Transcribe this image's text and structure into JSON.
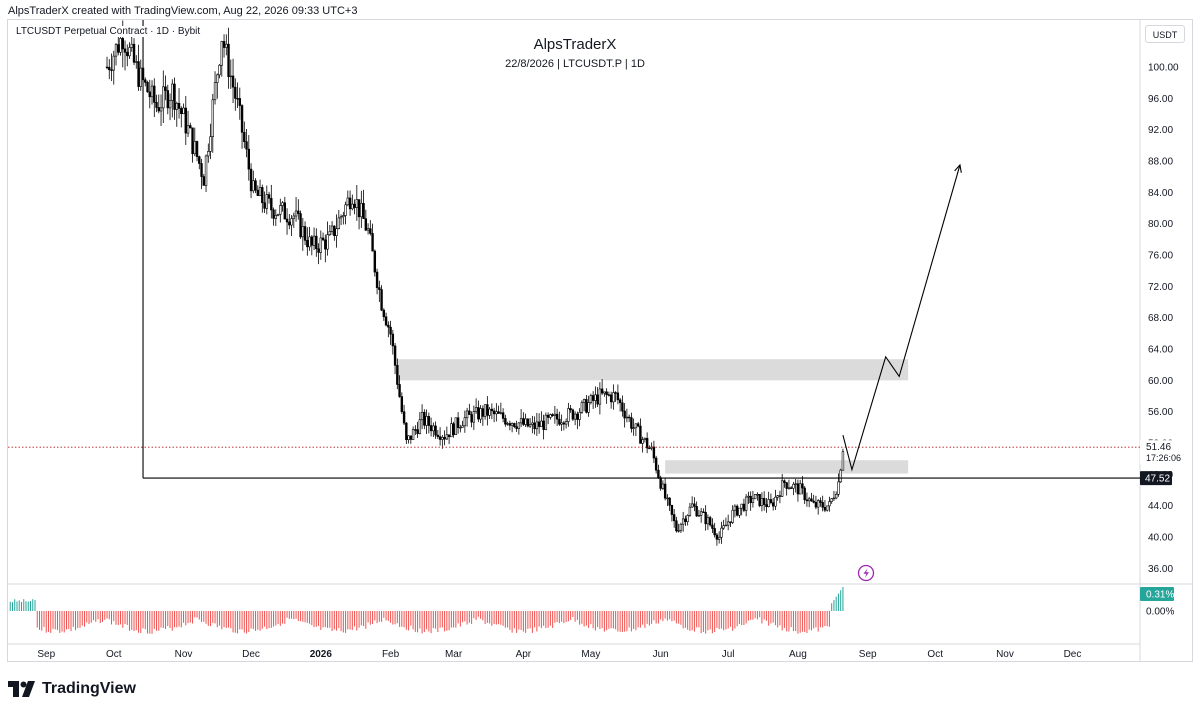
{
  "header": {
    "created_by": "AlpsTraderX created with TradingView.com, Aug 22, 2026 09:33 UTC+3",
    "symbol_line": "LTCUSDT Perpetual Contract · 1D · Bybit",
    "title": "AlpsTraderX",
    "subtitle": "22/8/2026 | LTCUSDT.P | 1D",
    "currency": "USDT"
  },
  "footer": {
    "brand": "TradingView",
    "logo_icon": "tradingview-logo-icon"
  },
  "colors": {
    "candle": "#000000",
    "zone": "#d9d9d9",
    "bar_negative": "#ef5350",
    "bar_positive": "#26a69a",
    "price_line": "#b71c1c",
    "indicator_icon": "#9c27b0"
  },
  "chart_data": {
    "type": "candlestick",
    "title": "AlpsTraderX",
    "subtitle": "22/8/2026 | LTCUSDT.P | 1D",
    "x_ticks": [
      "Sep",
      "Oct",
      "Nov",
      "Dec",
      "2026",
      "Feb",
      "Mar",
      "Apr",
      "May",
      "Jun",
      "Jul",
      "Aug",
      "Sep",
      "Oct",
      "Nov",
      "Dec"
    ],
    "y_ticks": [
      "100.00",
      "96.00",
      "92.00",
      "88.00",
      "84.00",
      "80.00",
      "76.00",
      "72.00",
      "68.00",
      "64.00",
      "60.00",
      "56.00",
      "52.00",
      "48.00",
      "44.00",
      "40.00",
      "36.00"
    ],
    "ylim": [
      34,
      106
    ],
    "date_range": [
      "2025-08-15",
      "2026-12-31"
    ],
    "price_points": [
      [
        "2025-09-28",
        100
      ],
      [
        "2025-10-05",
        104
      ],
      [
        "2025-10-12",
        99
      ],
      [
        "2025-10-20",
        95
      ],
      [
        "2025-10-27",
        97
      ],
      [
        "2025-11-03",
        92
      ],
      [
        "2025-11-10",
        86
      ],
      [
        "2025-11-18",
        104
      ],
      [
        "2025-11-25",
        95
      ],
      [
        "2025-12-02",
        84
      ],
      [
        "2025-12-10",
        82
      ],
      [
        "2025-12-20",
        81
      ],
      [
        "2025-12-28",
        77
      ],
      [
        "2026-01-05",
        78
      ],
      [
        "2026-01-15",
        84
      ],
      [
        "2026-01-22",
        79
      ],
      [
        "2026-01-28",
        70
      ],
      [
        "2026-02-01",
        66
      ],
      [
        "2026-02-05",
        58
      ],
      [
        "2026-02-08",
        52
      ],
      [
        "2026-02-15",
        55
      ],
      [
        "2026-02-25",
        53
      ],
      [
        "2026-03-05",
        55
      ],
      [
        "2026-03-15",
        56
      ],
      [
        "2026-03-25",
        55
      ],
      [
        "2026-04-05",
        54
      ],
      [
        "2026-04-15",
        55
      ],
      [
        "2026-04-25",
        56
      ],
      [
        "2026-05-05",
        58
      ],
      [
        "2026-05-12",
        58
      ],
      [
        "2026-05-20",
        54
      ],
      [
        "2026-05-28",
        51
      ],
      [
        "2026-06-03",
        45
      ],
      [
        "2026-06-08",
        41
      ],
      [
        "2026-06-15",
        44
      ],
      [
        "2026-06-22",
        42
      ],
      [
        "2026-06-27",
        40
      ],
      [
        "2026-07-03",
        43
      ],
      [
        "2026-07-12",
        45
      ],
      [
        "2026-07-20",
        44
      ],
      [
        "2026-07-26",
        47
      ],
      [
        "2026-08-02",
        46
      ],
      [
        "2026-08-08",
        44
      ],
      [
        "2026-08-15",
        44
      ],
      [
        "2026-08-19",
        47
      ],
      [
        "2026-08-21",
        51.46
      ]
    ],
    "zones": [
      {
        "x0": "2026-02-04",
        "x1": "2026-09-19",
        "y0": 60,
        "y1": 62.7
      },
      {
        "x0": "2026-06-03",
        "x1": "2026-09-19",
        "y0": 48.1,
        "y1": 49.8
      }
    ],
    "support_line": {
      "x0": "2025-10-14",
      "y": 47.52,
      "top": 106
    },
    "projection": [
      [
        "2026-08-21",
        53
      ],
      [
        "2026-08-25",
        48.6
      ],
      [
        "2026-09-09",
        63
      ],
      [
        "2026-09-15",
        60.5
      ],
      [
        "2026-10-12",
        87.5
      ]
    ],
    "current_price": {
      "value": 51.46,
      "label": "51.46",
      "countdown": "17:26:06"
    },
    "level_label": {
      "value": 47.52,
      "label": "47.52"
    },
    "oscillator": {
      "value_label": "0.31%",
      "zero_label": "0.00%"
    }
  }
}
